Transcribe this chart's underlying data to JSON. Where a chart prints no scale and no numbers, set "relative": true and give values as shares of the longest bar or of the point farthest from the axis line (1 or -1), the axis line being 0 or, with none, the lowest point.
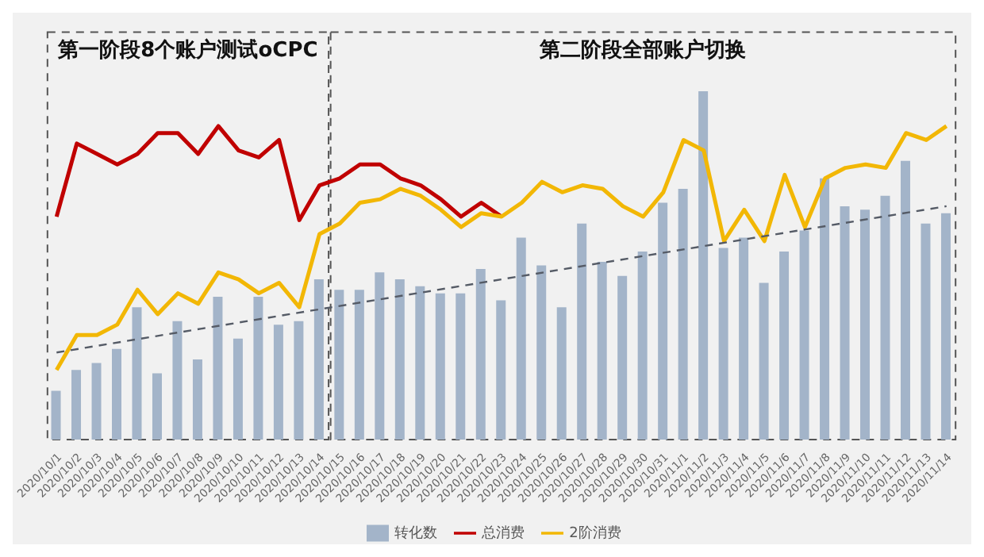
{
  "chart_data": {
    "type": "bar",
    "relative": true,
    "categories": [
      "2020/10/1",
      "2020/10/2",
      "2020/10/3",
      "2020/10/4",
      "2020/10/5",
      "2020/10/6",
      "2020/10/7",
      "2020/10/8",
      "2020/10/9",
      "2020/10/10",
      "2020/10/11",
      "2020/10/12",
      "2020/10/13",
      "2020/10/14",
      "2020/10/15",
      "2020/10/16",
      "2020/10/17",
      "2020/10/18",
      "2020/10/19",
      "2020/10/20",
      "2020/10/21",
      "2020/10/22",
      "2020/10/23",
      "2020/10/24",
      "2020/10/25",
      "2020/10/26",
      "2020/10/27",
      "2020/10/28",
      "2020/10/29",
      "2020/10/30",
      "2020/10/31",
      "2020/11/1",
      "2020/11/2",
      "2020/11/3",
      "2020/11/4",
      "2020/11/5",
      "2020/11/6",
      "2020/11/7",
      "2020/11/8",
      "2020/11/9",
      "2020/11/10",
      "2020/11/11",
      "2020/11/12",
      "2020/11/13",
      "2020/11/14"
    ],
    "series": [
      {
        "name": "转化数",
        "color": "#a3b4c9",
        "values": [
          0.14,
          0.2,
          0.22,
          0.26,
          0.38,
          0.19,
          0.34,
          0.23,
          0.41,
          0.29,
          0.41,
          0.33,
          0.34,
          0.46,
          0.43,
          0.43,
          0.48,
          0.46,
          0.44,
          0.42,
          0.42,
          0.49,
          0.4,
          0.58,
          0.5,
          0.38,
          0.62,
          0.51,
          0.47,
          0.54,
          0.68,
          0.72,
          1,
          0.55,
          0.58,
          0.45,
          0.54,
          0.6,
          0.75,
          0.67,
          0.66,
          0.7,
          0.8,
          0.62,
          0.65
        ]
      },
      {
        "name": "总消费",
        "type": "line",
        "color": "#c00000",
        "values": [
          0.64,
          0.85,
          0.82,
          0.79,
          0.82,
          0.88,
          0.88,
          0.82,
          0.9,
          0.83,
          0.81,
          0.86,
          0.63,
          0.73,
          0.75,
          0.79,
          0.79,
          0.75,
          0.73,
          0.69,
          0.64,
          0.68,
          0.64,
          null,
          null,
          null,
          null,
          null,
          null,
          null,
          null,
          null,
          null,
          null,
          null,
          null,
          null,
          null,
          null,
          null,
          null,
          null,
          null,
          null,
          null
        ]
      },
      {
        "name": "2阶消费",
        "type": "line",
        "color": "#f2b705",
        "values": [
          0.2,
          0.3,
          0.3,
          0.33,
          0.43,
          0.36,
          0.42,
          0.39,
          0.48,
          0.46,
          0.42,
          0.45,
          0.38,
          0.59,
          0.62,
          0.68,
          0.69,
          0.72,
          0.7,
          0.66,
          0.61,
          0.65,
          0.64,
          0.68,
          0.74,
          0.71,
          0.73,
          0.72,
          0.67,
          0.64,
          0.71,
          0.86,
          0.83,
          0.57,
          0.66,
          0.57,
          0.76,
          0.61,
          0.75,
          0.78,
          0.79,
          0.78,
          0.88,
          0.86,
          0.9
        ]
      },
      {
        "type": "line",
        "color": "#555b66",
        "line_style": "dashed",
        "marker": "none",
        "values": [
          0.25,
          null,
          null,
          null,
          null,
          null,
          null,
          null,
          null,
          null,
          null,
          null,
          null,
          null,
          null,
          null,
          null,
          null,
          null,
          null,
          null,
          null,
          null,
          null,
          null,
          null,
          null,
          null,
          null,
          null,
          null,
          null,
          null,
          null,
          null,
          null,
          null,
          null,
          null,
          null,
          null,
          null,
          null,
          null,
          0.67
        ]
      }
    ],
    "annotations": [
      "第一阶段8个账户测试oCPC",
      "第二阶段全部账户切换"
    ],
    "legend": "bottom",
    "grid": false,
    "marker": "none"
  }
}
